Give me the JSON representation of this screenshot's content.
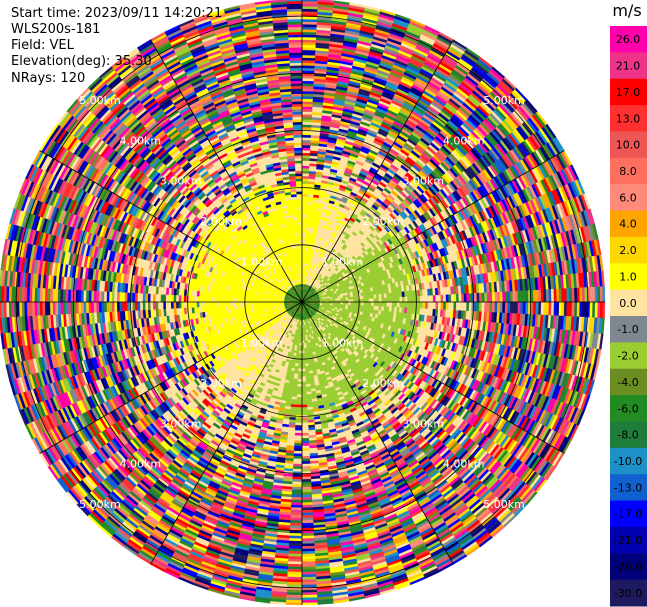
{
  "header": {
    "start_time": "Start time: 2023/09/11 14:20:21",
    "instrument": "WLS200s-181",
    "field": "Field: VEL",
    "elevation": "Elevation(deg): 35.30",
    "nrays": "NRays: 120"
  },
  "chart_data": {
    "type": "heatmap",
    "projection": "polar-ppi",
    "nrays": 120,
    "max_range_km": 5.3,
    "range_rings_km": [
      1,
      2,
      3,
      4,
      5
    ],
    "range_ring_labels": [
      "1.00km",
      "2.00km",
      "3.00km",
      "4.00km",
      "5.00km"
    ],
    "radial_spokes_deg": [
      0,
      30,
      60,
      90,
      120,
      150,
      180,
      210,
      240,
      270,
      300,
      330
    ],
    "colorbar": {
      "unit": "m/s",
      "ticks": [
        "26.0",
        "21.0",
        "17.0",
        "13.0",
        "10.0",
        "8.0",
        "6.0",
        "4.0",
        "2.0",
        "1.0",
        "0.0",
        "-1.0",
        "-2.0",
        "-4.0",
        "-6.0",
        "-8.0",
        "-10.0",
        "-13.0",
        "-17.0",
        "-21.0",
        "-26.0",
        "-30.0"
      ],
      "colors": [
        "#ff00aa",
        "#ee3388",
        "#ff0000",
        "#ff3030",
        "#ee5555",
        "#ff6f60",
        "#ff8a7a",
        "#ffa500",
        "#ffd700",
        "#ffff00",
        "#ffe3a0",
        "#7f8890",
        "#9acd32",
        "#6b8e23",
        "#228b22",
        "#1e7d3a",
        "#1e90c8",
        "#1060d0",
        "#0000ff",
        "#0000b0",
        "#00007a",
        "#1e1a60"
      ]
    },
    "near_field": {
      "range_km": 2.1,
      "dominant_values_ms": [
        0.0,
        1.0,
        -2.0,
        -4.0
      ]
    },
    "far_field_noise": true
  }
}
